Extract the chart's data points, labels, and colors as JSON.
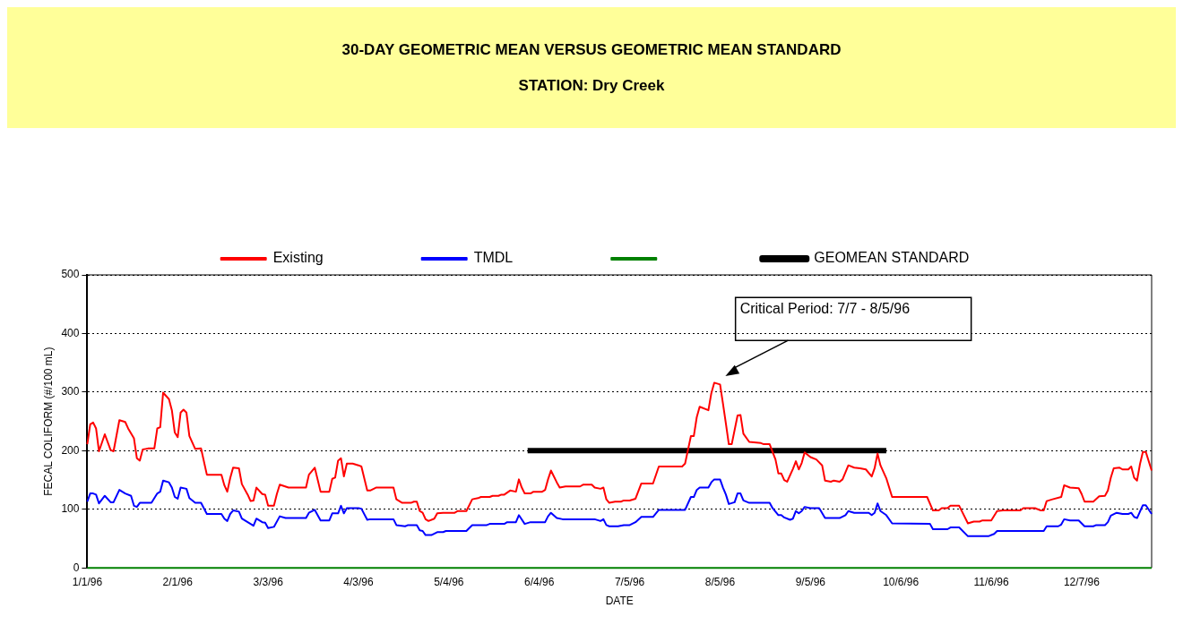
{
  "chart_data": {
    "type": "line",
    "title": "30-DAY GEOMETRIC MEAN VERSUS GEOMETRIC MEAN STANDARD",
    "subtitle": "STATION:  Dry Creek",
    "xlabel": "DATE",
    "ylabel": "FECAL COLIFORM (#/100 mL)",
    "xlim": [
      "1996-01-01",
      "1996-12-31"
    ],
    "xticks": [
      {
        "value": "1996-01-01",
        "label": "1/1/96"
      },
      {
        "value": "1996-02-01",
        "label": "2/1/96"
      },
      {
        "value": "1996-03-03",
        "label": "3/3/96"
      },
      {
        "value": "1996-04-03",
        "label": "4/3/96"
      },
      {
        "value": "1996-05-04",
        "label": "5/4/96"
      },
      {
        "value": "1996-06-04",
        "label": "6/4/96"
      },
      {
        "value": "1996-07-05",
        "label": "7/5/96"
      },
      {
        "value": "1996-08-05",
        "label": "8/5/96"
      },
      {
        "value": "1996-09-05",
        "label": "9/5/96"
      },
      {
        "value": "1996-10-06",
        "label": "10/6/96"
      },
      {
        "value": "1996-11-06",
        "label": "11/6/96"
      },
      {
        "value": "1996-12-07",
        "label": "12/7/96"
      }
    ],
    "ylim": [
      0,
      500
    ],
    "yticks": [
      0,
      100,
      200,
      300,
      400,
      500
    ],
    "grid": "y",
    "legend": "top",
    "annotations": [
      "Critical Period: 7/7 - 8/5/96"
    ],
    "series": [
      {
        "name": "Existing",
        "color": "#ff0000",
        "x": [
          "1996-01-01",
          "1996-01-02",
          "1996-01-03",
          "1996-01-04",
          "1996-01-05",
          "1996-01-07",
          "1996-01-09",
          "1996-01-10",
          "1996-01-12",
          "1996-01-14",
          "1996-01-15",
          "1996-01-17",
          "1996-01-18",
          "1996-01-19",
          "1996-01-20",
          "1996-01-21",
          "1996-01-22",
          "1996-01-24",
          "1996-01-25",
          "1996-01-26",
          "1996-01-27",
          "1996-01-29",
          "1996-01-30",
          "1996-01-31",
          "1996-02-01",
          "1996-02-02",
          "1996-02-03",
          "1996-02-04",
          "1996-02-05",
          "1996-02-07",
          "1996-02-09",
          "1996-02-11",
          "1996-02-16",
          "1996-02-17",
          "1996-02-18",
          "1996-02-19",
          "1996-02-20",
          "1996-02-22",
          "1996-02-23",
          "1996-02-25",
          "1996-02-26",
          "1996-02-27",
          "1996-02-28",
          "1996-03-01",
          "1996-03-02",
          "1996-03-03",
          "1996-03-05",
          "1996-03-06",
          "1996-03-07",
          "1996-03-10",
          "1996-03-16",
          "1996-03-17",
          "1996-03-19",
          "1996-03-21",
          "1996-03-24",
          "1996-03-25",
          "1996-03-26",
          "1996-03-27",
          "1996-03-28",
          "1996-03-29",
          "1996-03-30",
          "1996-04-01",
          "1996-04-03",
          "1996-04-04",
          "1996-04-06",
          "1996-04-07",
          "1996-04-09",
          "1996-04-15",
          "1996-04-16",
          "1996-04-18",
          "1996-04-21",
          "1996-04-22",
          "1996-04-23",
          "1996-04-24",
          "1996-04-25",
          "1996-04-26",
          "1996-04-27",
          "1996-04-29",
          "1996-04-30",
          "1996-05-02",
          "1996-05-06",
          "1996-05-07",
          "1996-05-10",
          "1996-05-12",
          "1996-05-14",
          "1996-05-15",
          "1996-05-18",
          "1996-05-19",
          "1996-05-21",
          "1996-05-22",
          "1996-05-23",
          "1996-05-25",
          "1996-05-27",
          "1996-05-28",
          "1996-05-29",
          "1996-05-30",
          "1996-06-01",
          "1996-06-02",
          "1996-06-05",
          "1996-06-06",
          "1996-06-07",
          "1996-06-08",
          "1996-06-10",
          "1996-06-11",
          "1996-06-13",
          "1996-06-18",
          "1996-06-19",
          "1996-06-22",
          "1996-06-23",
          "1996-06-25",
          "1996-06-26",
          "1996-06-27",
          "1996-06-28",
          "1996-06-30",
          "1996-07-02",
          "1996-07-03",
          "1996-07-05",
          "1996-07-07",
          "1996-07-09",
          "1996-07-13",
          "1996-07-15",
          "1996-07-23",
          "1996-07-24",
          "1996-07-26",
          "1996-07-27",
          "1996-07-28",
          "1996-07-29",
          "1996-08-01",
          "1996-08-02",
          "1996-08-03",
          "1996-08-05",
          "1996-08-06",
          "1996-08-07",
          "1996-08-08",
          "1996-08-09",
          "1996-08-11",
          "1996-08-12",
          "1996-08-13",
          "1996-08-15",
          "1996-08-19",
          "1996-08-20",
          "1996-08-22",
          "1996-08-24",
          "1996-08-25",
          "1996-08-26",
          "1996-08-27",
          "1996-08-28",
          "1996-08-30",
          "1996-08-31",
          "1996-09-01",
          "1996-09-02",
          "1996-09-03",
          "1996-09-05",
          "1996-09-07",
          "1996-09-09",
          "1996-09-10",
          "1996-09-12",
          "1996-09-13",
          "1996-09-15",
          "1996-09-16",
          "1996-09-18",
          "1996-09-20",
          "1996-09-22",
          "1996-09-24",
          "1996-09-26",
          "1996-09-27",
          "1996-09-28",
          "1996-09-29",
          "1996-10-01",
          "1996-10-03",
          "1996-10-15",
          "1996-10-17",
          "1996-10-19",
          "1996-10-20",
          "1996-10-22",
          "1996-10-23",
          "1996-10-26",
          "1996-10-29",
          "1996-10-31",
          "1996-11-02",
          "1996-11-03",
          "1996-11-06",
          "1996-11-08",
          "1996-11-10",
          "1996-11-16",
          "1996-11-17",
          "1996-11-21",
          "1996-11-23",
          "1996-11-24",
          "1996-11-25",
          "1996-11-27",
          "1996-11-30",
          "1996-12-01",
          "1996-12-03",
          "1996-12-06",
          "1996-12-07",
          "1996-12-08",
          "1996-12-11",
          "1996-12-13",
          "1996-12-15",
          "1996-12-16",
          "1996-12-17",
          "1996-12-18",
          "1996-12-20",
          "1996-12-21",
          "1996-12-23",
          "1996-12-24",
          "1996-12-25",
          "1996-12-26",
          "1996-12-27",
          "1996-12-28",
          "1996-12-29",
          "1996-12-31"
        ],
        "values": [
          211,
          245,
          248,
          238,
          199,
          228,
          201,
          199,
          252,
          249,
          238,
          221,
          187,
          183,
          202,
          203,
          204,
          204,
          238,
          240,
          299,
          288,
          269,
          231,
          223,
          265,
          270,
          265,
          225,
          203,
          204,
          159,
          159,
          141,
          130,
          153,
          171,
          170,
          143,
          125,
          114,
          115,
          137,
          126,
          125,
          106,
          106,
          126,
          142,
          137,
          137,
          159,
          171,
          130,
          130,
          152,
          154,
          183,
          187,
          156,
          178,
          178,
          175,
          173,
          132,
          132,
          137,
          137,
          117,
          111,
          111,
          113,
          113,
          97,
          94,
          83,
          80,
          84,
          93,
          94,
          94,
          97,
          97,
          117,
          119,
          121,
          121,
          123,
          123,
          125,
          125,
          132,
          130,
          151,
          137,
          127,
          127,
          130,
          130,
          133,
          151,
          166,
          146,
          137,
          139,
          139,
          142,
          142,
          137,
          135,
          137,
          117,
          111,
          113,
          113,
          115,
          115,
          118,
          144,
          144,
          173,
          173,
          178,
          225,
          225,
          257,
          275,
          269,
          298,
          316,
          313,
          280,
          246,
          211,
          211,
          260,
          261,
          229,
          215,
          213,
          211,
          211,
          185,
          161,
          161,
          150,
          147,
          169,
          182,
          168,
          179,
          197,
          189,
          185,
          175,
          149,
          147,
          149,
          147,
          151,
          175,
          171,
          170,
          168,
          156,
          170,
          195,
          175,
          153,
          121,
          121,
          98,
          98,
          102,
          102,
          106,
          106,
          76,
          79,
          79,
          81,
          81,
          97,
          98,
          98,
          102,
          102,
          98,
          98,
          114,
          117,
          121,
          141,
          137,
          136,
          126,
          113,
          113,
          122,
          123,
          132,
          154,
          170,
          171,
          168,
          168,
          173,
          154,
          149,
          177,
          198,
          198,
          166
        ]
      },
      {
        "name": "TMDL",
        "color": "#0000ff",
        "x": [
          "1996-01-01",
          "1996-01-02",
          "1996-01-03",
          "1996-01-04",
          "1996-01-05",
          "1996-01-07",
          "1996-01-09",
          "1996-01-10",
          "1996-01-12",
          "1996-01-14",
          "1996-01-16",
          "1996-01-17",
          "1996-01-18",
          "1996-01-19",
          "1996-01-23",
          "1996-01-25",
          "1996-01-26",
          "1996-01-27",
          "1996-01-29",
          "1996-01-30",
          "1996-01-31",
          "1996-02-01",
          "1996-02-02",
          "1996-02-04",
          "1996-02-05",
          "1996-02-07",
          "1996-02-09",
          "1996-02-11",
          "1996-02-16",
          "1996-02-17",
          "1996-02-18",
          "1996-02-19",
          "1996-02-20",
          "1996-02-22",
          "1996-02-23",
          "1996-02-25",
          "1996-02-27",
          "1996-02-28",
          "1996-03-01",
          "1996-03-02",
          "1996-03-03",
          "1996-03-05",
          "1996-03-07",
          "1996-03-09",
          "1996-03-16",
          "1996-03-17",
          "1996-03-19",
          "1996-03-21",
          "1996-03-24",
          "1996-03-25",
          "1996-03-27",
          "1996-03-28",
          "1996-03-29",
          "1996-03-30",
          "1996-04-03",
          "1996-04-04",
          "1996-04-06",
          "1996-04-07",
          "1996-04-15",
          "1996-04-16",
          "1996-04-19",
          "1996-04-20",
          "1996-04-23",
          "1996-04-24",
          "1996-04-25",
          "1996-04-26",
          "1996-04-28",
          "1996-04-30",
          "1996-05-02",
          "1996-05-03",
          "1996-05-10",
          "1996-05-12",
          "1996-05-17",
          "1996-05-18",
          "1996-05-23",
          "1996-05-24",
          "1996-05-27",
          "1996-05-28",
          "1996-05-30",
          "1996-06-01",
          "1996-06-06",
          "1996-06-07",
          "1996-06-08",
          "1996-06-10",
          "1996-06-12",
          "1996-06-23",
          "1996-06-25",
          "1996-06-26",
          "1996-06-27",
          "1996-06-28",
          "1996-07-01",
          "1996-07-03",
          "1996-07-05",
          "1996-07-07",
          "1996-07-09",
          "1996-07-13",
          "1996-07-15",
          "1996-07-24",
          "1996-07-26",
          "1996-07-27",
          "1996-07-28",
          "1996-07-29",
          "1996-08-01",
          "1996-08-02",
          "1996-08-03",
          "1996-08-05",
          "1996-08-06",
          "1996-08-07",
          "1996-08-08",
          "1996-08-10",
          "1996-08-11",
          "1996-08-12",
          "1996-08-13",
          "1996-08-15",
          "1996-08-22",
          "1996-08-23",
          "1996-08-25",
          "1996-08-26",
          "1996-08-27",
          "1996-08-29",
          "1996-08-30",
          "1996-08-31",
          "1996-09-01",
          "1996-09-02",
          "1996-09-03",
          "1996-09-05",
          "1996-09-08",
          "1996-09-10",
          "1996-09-15",
          "1996-09-17",
          "1996-09-18",
          "1996-09-20",
          "1996-09-25",
          "1996-09-26",
          "1996-09-27",
          "1996-09-28",
          "1996-09-29",
          "1996-10-01",
          "1996-10-03",
          "1996-10-16",
          "1996-10-17",
          "1996-10-22",
          "1996-10-23",
          "1996-10-26",
          "1996-10-29",
          "1996-11-05",
          "1996-11-07",
          "1996-11-08",
          "1996-11-24",
          "1996-11-25",
          "1996-11-29",
          "1996-11-30",
          "1996-12-01",
          "1996-12-03",
          "1996-12-06",
          "1996-12-08",
          "1996-12-11",
          "1996-12-12",
          "1996-12-15",
          "1996-12-16",
          "1996-12-17",
          "1996-12-19",
          "1996-12-21",
          "1996-12-23",
          "1996-12-24",
          "1996-12-25",
          "1996-12-26",
          "1996-12-28",
          "1996-12-29",
          "1996-12-31"
        ],
        "values": [
          113,
          127,
          127,
          125,
          110,
          123,
          112,
          112,
          133,
          127,
          123,
          106,
          104,
          111,
          111,
          127,
          130,
          149,
          146,
          137,
          121,
          118,
          137,
          135,
          119,
          111,
          111,
          92,
          92,
          84,
          80,
          92,
          98,
          96,
          84,
          78,
          72,
          84,
          78,
          77,
          68,
          70,
          88,
          85,
          85,
          94,
          99,
          81,
          81,
          93,
          93,
          106,
          93,
          102,
          102,
          101,
          82,
          83,
          83,
          73,
          71,
          73,
          73,
          64,
          63,
          56,
          56,
          61,
          61,
          63,
          63,
          73,
          73,
          75,
          75,
          78,
          78,
          90,
          75,
          78,
          78,
          88,
          94,
          85,
          83,
          83,
          80,
          83,
          73,
          71,
          71,
          73,
          73,
          78,
          87,
          87,
          99,
          99,
          121,
          121,
          133,
          137,
          137,
          146,
          151,
          151,
          137,
          125,
          109,
          112,
          127,
          127,
          115,
          111,
          111,
          102,
          90,
          90,
          86,
          82,
          84,
          97,
          93,
          97,
          104,
          102,
          102,
          85,
          85,
          90,
          97,
          94,
          94,
          90,
          94,
          110,
          97,
          90,
          76,
          75,
          66,
          66,
          69,
          69,
          54,
          54,
          58,
          63,
          63,
          71,
          71,
          74,
          83,
          81,
          81,
          71,
          71,
          73,
          73,
          78,
          89,
          94,
          92,
          92,
          94,
          87,
          85,
          107,
          107,
          92
        ]
      },
      {
        "color": "#008000",
        "x": [
          "1996-01-01",
          "1996-12-31"
        ],
        "values": [
          0,
          0
        ]
      },
      {
        "name": "GEOMEAN STANDARD",
        "color": "#000000",
        "x": [
          "1996-05-31",
          "1996-10-01"
        ],
        "values": [
          200,
          200
        ]
      }
    ]
  }
}
